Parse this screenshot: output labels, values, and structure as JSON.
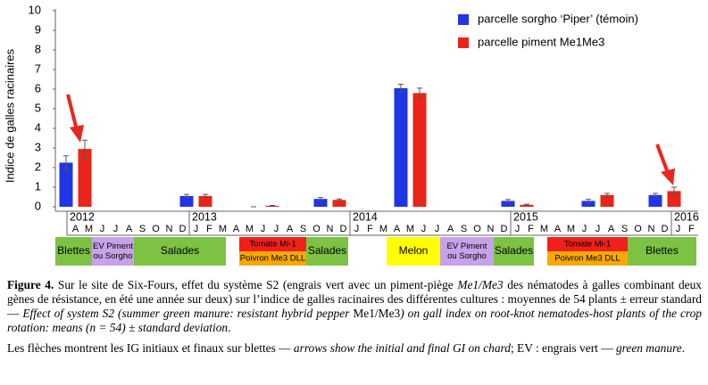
{
  "chart_data": {
    "type": "bar",
    "ylabel": "Indice de galles racinaires",
    "ylim": [
      0,
      10
    ],
    "yticks": [
      0,
      1,
      2,
      3,
      4,
      5,
      6,
      7,
      8,
      9,
      10
    ],
    "categories": [
      "A",
      "M",
      "J",
      "J",
      "A",
      "S",
      "O",
      "N",
      "D",
      "J",
      "F",
      "M",
      "A",
      "M",
      "J",
      "J",
      "A",
      "S",
      "O",
      "N",
      "D",
      "J",
      "F",
      "M",
      "A",
      "M",
      "J",
      "J",
      "A",
      "S",
      "O",
      "N",
      "D",
      "J",
      "F",
      "M",
      "A",
      "M",
      "J",
      "J",
      "A",
      "S",
      "O",
      "N",
      "D",
      "J",
      "F"
    ],
    "years": [
      "2012",
      "2013",
      "2014",
      "2015",
      "2016"
    ],
    "series": [
      {
        "name": "parcelle sorgho ‘Piper’ (témoin)",
        "color": "#1f35e6",
        "values": [
          2.25,
          null,
          null,
          null,
          null,
          null,
          null,
          null,
          null,
          0.55,
          null,
          null,
          null,
          null,
          0,
          null,
          null,
          null,
          null,
          0.4,
          null,
          null,
          null,
          null,
          null,
          6.05,
          null,
          null,
          null,
          null,
          null,
          null,
          null,
          0.3,
          null,
          null,
          null,
          null,
          null,
          0.3,
          null,
          null,
          null,
          null,
          0.6,
          null,
          null
        ],
        "errors": [
          0.35,
          null,
          null,
          null,
          null,
          null,
          null,
          null,
          null,
          0.08,
          null,
          null,
          null,
          null,
          0,
          null,
          null,
          null,
          null,
          0.07,
          null,
          null,
          null,
          null,
          null,
          0.2,
          null,
          null,
          null,
          null,
          null,
          null,
          null,
          0.07,
          null,
          null,
          null,
          null,
          null,
          0.08,
          null,
          null,
          null,
          null,
          0.08,
          null,
          null
        ]
      },
      {
        "name": "parcelle piment Me1Me3",
        "color": "#ea2418",
        "values": [
          2.95,
          null,
          null,
          null,
          null,
          null,
          null,
          null,
          null,
          0.55,
          null,
          null,
          null,
          null,
          0.05,
          null,
          null,
          null,
          null,
          0.35,
          null,
          null,
          null,
          null,
          null,
          5.8,
          null,
          null,
          null,
          null,
          null,
          null,
          null,
          0.1,
          null,
          null,
          null,
          null,
          null,
          0.6,
          null,
          null,
          null,
          null,
          0.8,
          null,
          null
        ],
        "errors": [
          0.45,
          null,
          null,
          null,
          null,
          null,
          null,
          null,
          null,
          0.08,
          null,
          null,
          null,
          null,
          0.02,
          null,
          null,
          null,
          null,
          0.05,
          null,
          null,
          null,
          null,
          null,
          0.25,
          null,
          null,
          null,
          null,
          null,
          null,
          null,
          0.03,
          null,
          null,
          null,
          null,
          null,
          0.08,
          null,
          null,
          null,
          null,
          0.2,
          null,
          null
        ]
      }
    ],
    "crops": [
      {
        "lines": [
          "Blettes"
        ],
        "color": "#7dc243"
      },
      {
        "lines": [
          "EV Piment",
          "ou Sorgho"
        ],
        "color": "#c8a2e8"
      },
      {
        "lines": [
          "Salades"
        ],
        "color": "#7dc243"
      },
      {
        "lines": [
          "Tomate Mi-1"
        ],
        "color": "#f0201c"
      },
      {
        "lines": [
          "Poivron  Me3 DLL"
        ],
        "color": "#f8a900"
      },
      {
        "lines": [
          "Salades"
        ],
        "color": "#7dc243"
      },
      {
        "lines": [
          "Melon"
        ],
        "color": "#ffff00"
      },
      {
        "lines": [
          "EV Piment",
          "ou Sorgho"
        ],
        "color": "#c8a2e8"
      },
      {
        "lines": [
          "Salades"
        ],
        "color": "#7dc243"
      },
      {
        "lines": [
          "Tomate Mi-1"
        ],
        "color": "#f0201c"
      },
      {
        "lines": [
          "Poivron  Me3 DLL"
        ],
        "color": "#f8a900"
      },
      {
        "lines": [
          "Blettes"
        ],
        "color": "#7dc243"
      }
    ]
  },
  "caption": [
    [
      {
        "t": "Figure 4.",
        "s": "b"
      },
      {
        "t": " Sur le site de Six-Fours, effet du système S2 (engrais vert avec un piment-piège ",
        "s": "n"
      },
      {
        "t": "Me1/Me3",
        "s": "i"
      },
      {
        "t": " des nématodes à galles combinant deux gènes de résistance, en été une année sur deux) sur l’indice de galles racinaires des différentes cultures : moyennes de 54 plants ± erreur standard — ",
        "s": "n"
      },
      {
        "t": "Effect of system S2 (summer green manure: resistant hybrid pepper ",
        "s": "i"
      },
      {
        "t": "Me1/Me3",
        "s": "n"
      },
      {
        "t": ") on gall index on root-knot nematodes-host plants of the crop rotation: means (n = 54) ± standard deviation",
        "s": "i"
      },
      {
        "t": ".",
        "s": "n"
      }
    ],
    [
      {
        "t": "Les flèches montrent les IG initiaux et finaux sur blettes — ",
        "s": "n"
      },
      {
        "t": "arrows show the initial and final GI on chard",
        "s": "i"
      },
      {
        "t": "; EV : engrais vert — ",
        "s": "n"
      },
      {
        "t": "green manure",
        "s": "i"
      },
      {
        "t": ".",
        "s": "n"
      }
    ]
  ]
}
